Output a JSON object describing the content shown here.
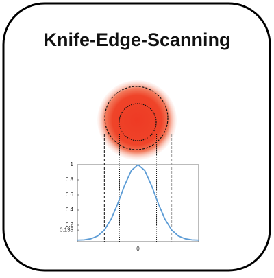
{
  "title": "Knife-Edge-Scanning",
  "chart_data": {
    "type": "line",
    "x": [
      -3.6,
      -3.2,
      -2.8,
      -2.4,
      -2.0,
      -1.6,
      -1.2,
      -0.8,
      -0.4,
      0,
      0.4,
      0.8,
      1.2,
      1.6,
      2.0,
      2.4,
      2.8,
      3.2,
      3.6
    ],
    "values": [
      0.002,
      0.006,
      0.02,
      0.056,
      0.135,
      0.278,
      0.487,
      0.726,
      0.923,
      1,
      0.923,
      0.726,
      0.487,
      0.278,
      0.135,
      0.056,
      0.02,
      0.006,
      0.002
    ],
    "color": "#5b9bd5",
    "xlim": [
      -3.6,
      3.6
    ],
    "ylim": [
      0,
      1
    ],
    "xticks": [
      0
    ],
    "yticks": [
      0.135,
      0.2,
      0.4,
      0.6,
      0.8,
      1
    ],
    "vlines": [
      -2,
      -1.1,
      1.1,
      2
    ],
    "vline_styles": [
      "dashed",
      "dotted",
      "dotted",
      "dashed"
    ]
  }
}
